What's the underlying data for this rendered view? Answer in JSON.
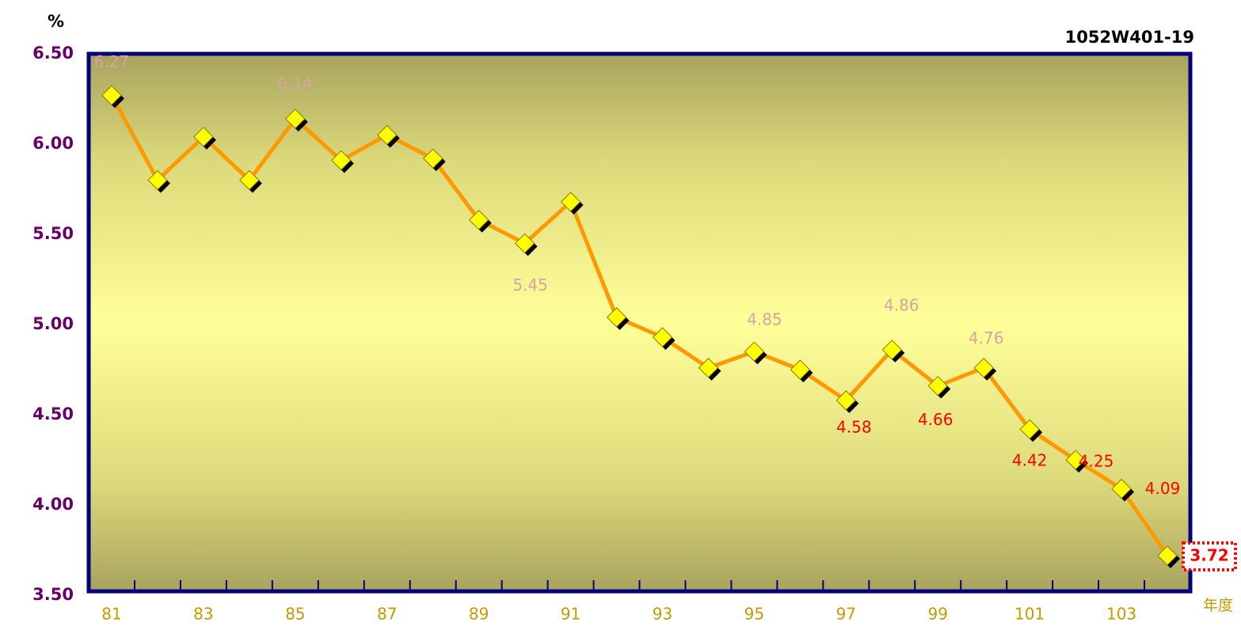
{
  "chart_data": {
    "type": "line",
    "annotation": "1052W401-19",
    "y_label": "%",
    "x_label": "年度",
    "categories": [
      "81",
      null,
      "83",
      null,
      "85",
      null,
      "87",
      null,
      "89",
      null,
      "91",
      null,
      "93",
      null,
      "95",
      null,
      "97",
      null,
      "99",
      null,
      "101",
      null,
      "103",
      null
    ],
    "values": [
      6.27,
      5.8,
      6.04,
      5.8,
      6.14,
      5.91,
      6.05,
      5.92,
      5.58,
      5.45,
      5.68,
      5.04,
      4.93,
      4.76,
      4.85,
      4.75,
      4.58,
      4.86,
      4.66,
      4.76,
      4.42,
      4.25,
      4.09,
      3.72
    ],
    "value_labels": [
      "6.27",
      null,
      null,
      null,
      "6.14",
      null,
      null,
      null,
      null,
      "5.45",
      null,
      null,
      null,
      null,
      "4.85",
      null,
      "4.58",
      "4.86",
      "4.66",
      "4.76",
      "4.42",
      "4.25",
      "4.09",
      "3.72"
    ],
    "value_label_colors": [
      "#d9a3a3",
      null,
      null,
      null,
      "#d9a3a3",
      null,
      null,
      null,
      null,
      "#d9a3a3",
      null,
      null,
      null,
      null,
      "#d9a3a3",
      null,
      "#ff0000",
      "#d9a3a3",
      "#ff0000",
      "#d9a3a3",
      "#ff0000",
      "#ff0000",
      "#ff0000",
      "#ff0000"
    ],
    "color": "#ff9900",
    "marker_color": "#ffff00",
    "ylim": [
      3.5,
      6.5
    ],
    "yticks": [
      {
        "value": 3.5,
        "label": "3.50"
      },
      {
        "value": 4,
        "label": "4.00"
      },
      {
        "value": 4.5,
        "label": "4.50"
      },
      {
        "value": 5,
        "label": "5.00"
      },
      {
        "value": 5.5,
        "label": "5.50"
      },
      {
        "value": 6,
        "label": "6.00"
      },
      {
        "value": 6.5,
        "label": "6.50"
      }
    ],
    "grid": false
  }
}
